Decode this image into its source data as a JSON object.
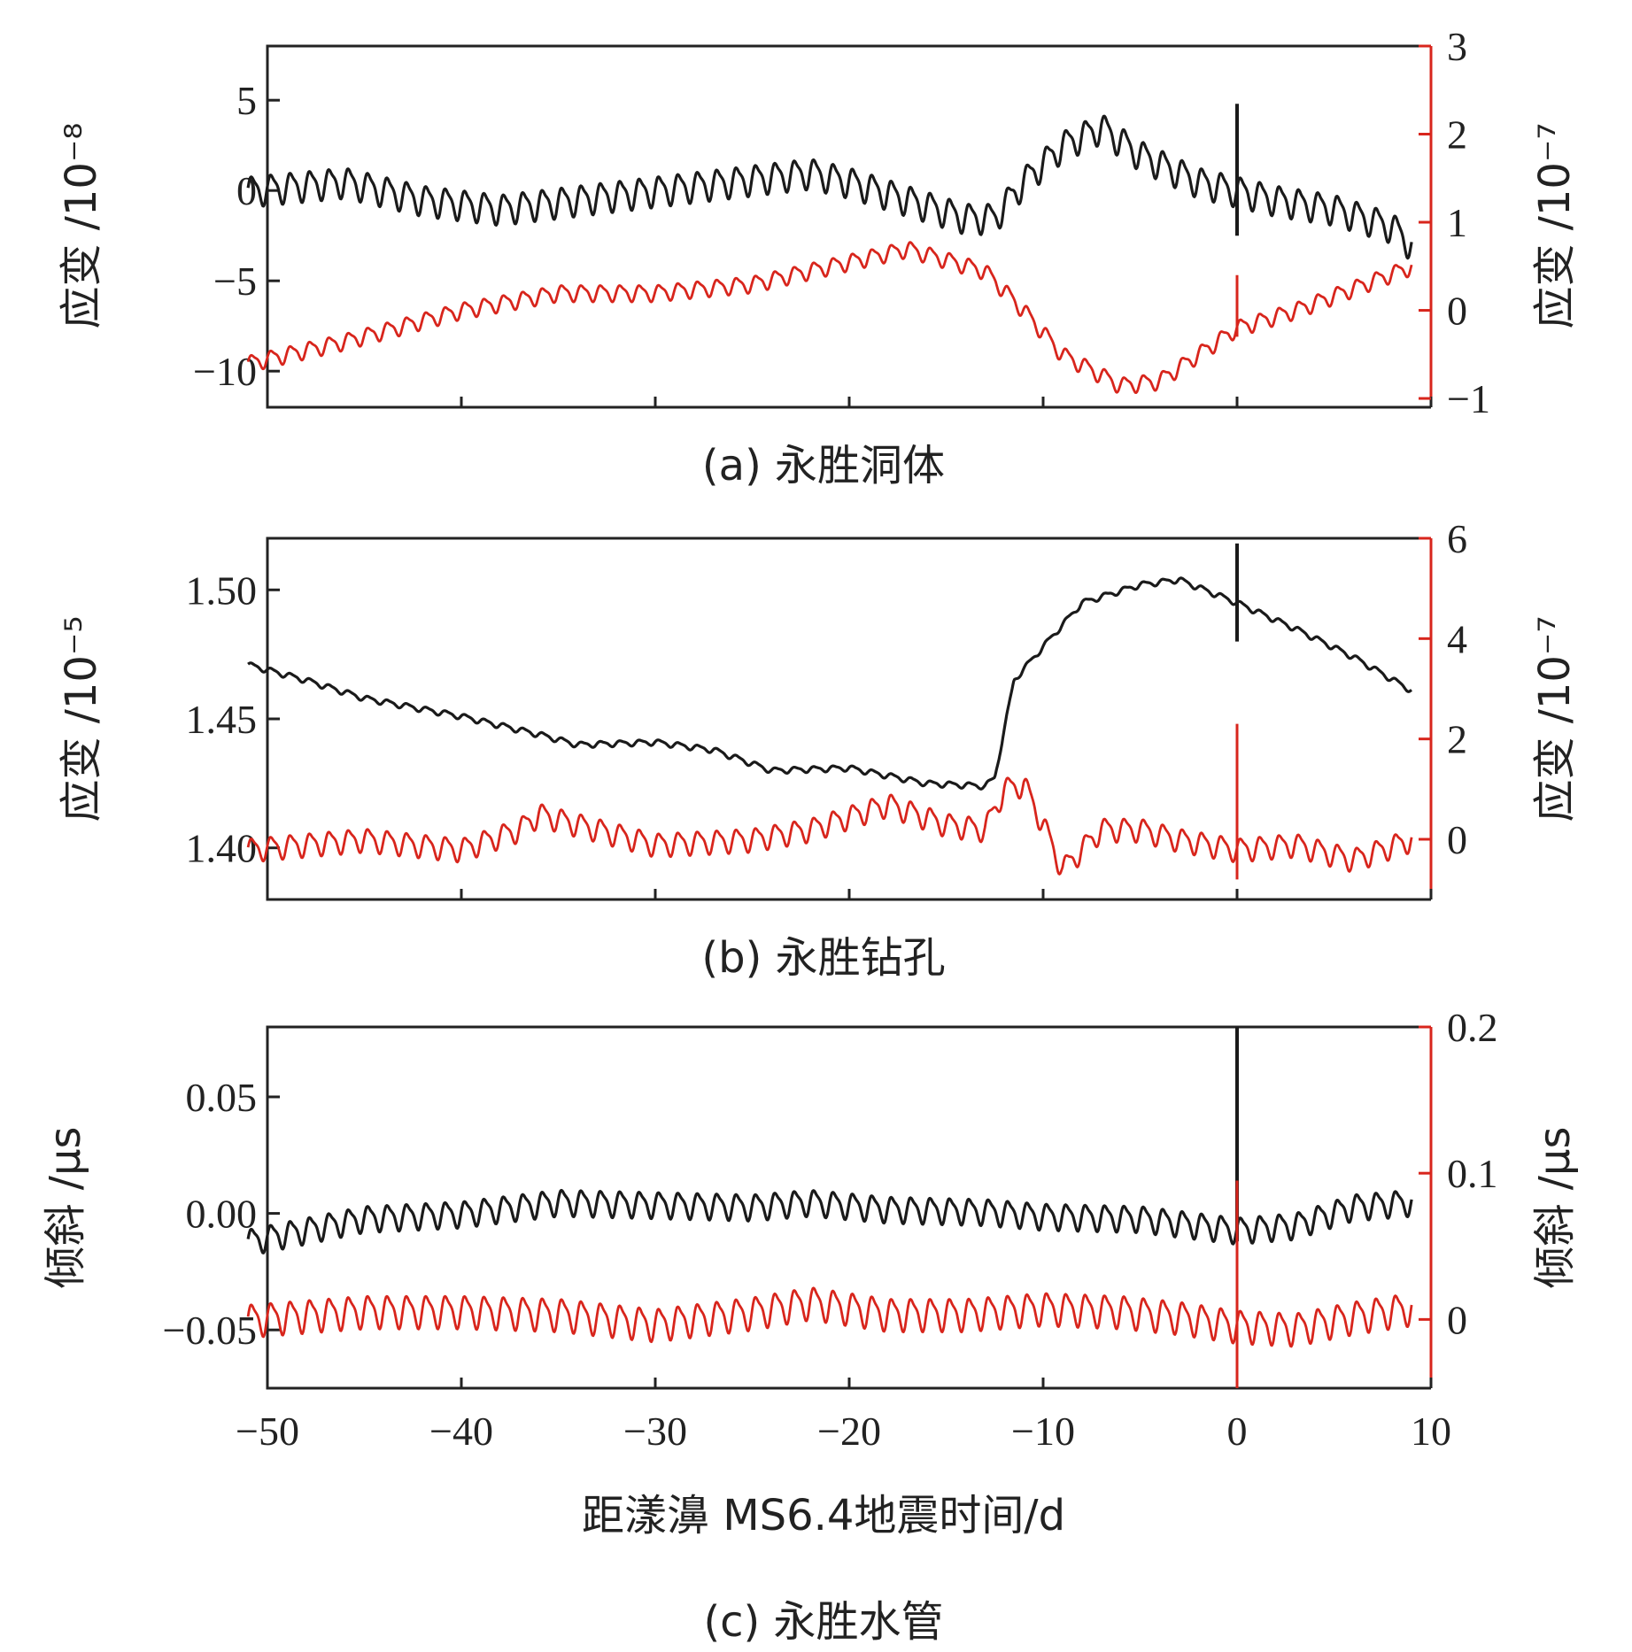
{
  "chart_data": [
    {
      "type": "line",
      "caption": "(a) 永胜洞体",
      "xlim": [
        -50,
        10
      ],
      "x_ticks": [
        -50,
        -40,
        -30,
        -20,
        -10,
        0,
        10
      ],
      "left_axis": {
        "label": "应变 /10⁻⁸",
        "ylim": [
          -12,
          8
        ],
        "ticks": [
          5,
          0,
          -5,
          -10
        ],
        "color": "#222222"
      },
      "right_axis": {
        "label": "应变 /10⁻⁷",
        "ylim": [
          -1.1,
          3
        ],
        "ticks": [
          3,
          2,
          1,
          0,
          -1
        ],
        "color": "#d8251c"
      },
      "series": [
        {
          "name": "black",
          "axis": "left",
          "color": "#1a1a1a",
          "ripple": 0.9,
          "period": 1,
          "points": [
            [
              -51,
              0
            ],
            [
              -46,
              0.5
            ],
            [
              -42,
              -0.5
            ],
            [
              -38,
              -1
            ],
            [
              -34,
              -0.5
            ],
            [
              -30,
              0
            ],
            [
              -26,
              0.5
            ],
            [
              -22,
              1
            ],
            [
              -20,
              0.5
            ],
            [
              -17,
              -0.5
            ],
            [
              -14,
              -1.5
            ],
            [
              -12.5,
              -1.5
            ],
            [
              -11,
              0.5
            ],
            [
              -9,
              2.5
            ],
            [
              -7,
              3.5
            ],
            [
              -5,
              2
            ],
            [
              -2,
              0.5
            ],
            [
              0,
              0
            ],
            [
              2,
              -0.5
            ],
            [
              5,
              -1
            ],
            [
              8,
              -2
            ],
            [
              9,
              -3
            ]
          ]
        },
        {
          "name": "red",
          "axis": "right",
          "color": "#d8251c",
          "ripple": 0.1,
          "period": 1,
          "points": [
            [
              -51,
              -0.6
            ],
            [
              -46,
              -0.35
            ],
            [
              -40,
              0
            ],
            [
              -35,
              0.2
            ],
            [
              -30,
              0.2
            ],
            [
              -25,
              0.3
            ],
            [
              -20,
              0.55
            ],
            [
              -17,
              0.7
            ],
            [
              -13,
              0.45
            ],
            [
              -11,
              0
            ],
            [
              -9,
              -0.5
            ],
            [
              -6,
              -0.85
            ],
            [
              -4,
              -0.8
            ],
            [
              -2,
              -0.5
            ],
            [
              0,
              -0.2
            ],
            [
              3,
              0
            ],
            [
              6,
              0.25
            ],
            [
              9,
              0.5
            ]
          ]
        }
      ],
      "spikes": [
        {
          "series": "black",
          "x": 0,
          "from": 4.8,
          "to": -2.5
        },
        {
          "series": "red",
          "x": 0,
          "from": 0.4,
          "to": -0.3
        }
      ]
    },
    {
      "type": "line",
      "caption": "(b) 永胜钻孔",
      "xlim": [
        -50,
        10
      ],
      "x_ticks": [
        -50,
        -40,
        -30,
        -20,
        -10,
        0,
        10
      ],
      "left_axis": {
        "label": "应变 /10⁻⁵",
        "ylim": [
          1.38,
          1.52
        ],
        "ticks": [
          1.5,
          1.45,
          1.4
        ],
        "decimals": 2,
        "color": "#222222"
      },
      "right_axis": {
        "label": "应变 /10⁻⁷",
        "ylim": [
          -1.2,
          6
        ],
        "ticks": [
          6,
          4,
          2,
          0
        ],
        "color": "#d8251c"
      },
      "series": [
        {
          "name": "black",
          "axis": "left",
          "color": "#1a1a1a",
          "ripple": 0.0012,
          "period": 1,
          "points": [
            [
              -51,
              1.471
            ],
            [
              -48,
              1.465
            ],
            [
              -45,
              1.458
            ],
            [
              -40,
              1.451
            ],
            [
              -36,
              1.444
            ],
            [
              -34,
              1.44
            ],
            [
              -30,
              1.441
            ],
            [
              -27,
              1.438
            ],
            [
              -24,
              1.43
            ],
            [
              -20,
              1.431
            ],
            [
              -16,
              1.425
            ],
            [
              -13,
              1.424
            ],
            [
              -12.5,
              1.427
            ],
            [
              -11.5,
              1.465
            ],
            [
              -10,
              1.478
            ],
            [
              -8,
              1.495
            ],
            [
              -5,
              1.502
            ],
            [
              -3,
              1.504
            ],
            [
              0,
              1.495
            ],
            [
              3,
              1.485
            ],
            [
              6,
              1.474
            ],
            [
              9,
              1.461
            ]
          ]
        },
        {
          "name": "red",
          "axis": "right",
          "color": "#d8251c",
          "ripple": 0.25,
          "period": 1,
          "points": [
            [
              -51,
              -0.2
            ],
            [
              -45,
              0
            ],
            [
              -40,
              -0.2
            ],
            [
              -37,
              0.2
            ],
            [
              -36,
              0.5
            ],
            [
              -34,
              0.3
            ],
            [
              -30,
              -0.1
            ],
            [
              -25,
              0
            ],
            [
              -22,
              0.2
            ],
            [
              -18,
              0.7
            ],
            [
              -15,
              0.3
            ],
            [
              -13,
              0.2
            ],
            [
              -12,
              1
            ],
            [
              -11,
              1.1
            ],
            [
              -10,
              0.3
            ],
            [
              -9,
              -0.6
            ],
            [
              -7,
              0.2
            ],
            [
              -5,
              0.2
            ],
            [
              -3,
              0
            ],
            [
              0,
              -0.2
            ],
            [
              3,
              -0.1
            ],
            [
              6,
              -0.4
            ],
            [
              9,
              0
            ]
          ]
        }
      ],
      "spikes": [
        {
          "series": "black",
          "x": 0,
          "from": 1.518,
          "to": 1.48
        },
        {
          "series": "red",
          "x": 0,
          "from": 2.3,
          "to": -0.8
        }
      ]
    },
    {
      "type": "line",
      "caption": "(c) 永胜水管",
      "xlim": [
        -50,
        10
      ],
      "x_ticks": [
        -50,
        -40,
        -30,
        -20,
        -10,
        0,
        10
      ],
      "x_label": "距漾濞 MS6.4地震时间/d",
      "left_axis": {
        "label": "倾斜 /μs",
        "ylim": [
          -0.075,
          0.08
        ],
        "ticks": [
          0.05,
          0,
          -0.05
        ],
        "decimals": 2,
        "color": "#222222"
      },
      "right_axis": {
        "label": "倾斜 /μs",
        "ylim": [
          -0.047,
          0.2
        ],
        "ticks": [
          0.2,
          0.1,
          0
        ],
        "color": "#d8251c"
      },
      "series": [
        {
          "name": "black",
          "axis": "left",
          "color": "#1a1a1a",
          "ripple": 0.006,
          "period": 1,
          "points": [
            [
              -51,
              -0.012
            ],
            [
              -45,
              -0.002
            ],
            [
              -40,
              0
            ],
            [
              -35,
              0.005
            ],
            [
              -30,
              0.004
            ],
            [
              -25,
              0.003
            ],
            [
              -22,
              0.005
            ],
            [
              -18,
              0.002
            ],
            [
              -13,
              0.001
            ],
            [
              -10,
              -0.001
            ],
            [
              -5,
              -0.002
            ],
            [
              0,
              -0.007
            ],
            [
              3,
              -0.005
            ],
            [
              6,
              0.003
            ],
            [
              9,
              0.005
            ]
          ]
        },
        {
          "name": "red",
          "axis": "right",
          "color": "#d8251c",
          "ripple": 0.012,
          "period": 1,
          "points": [
            [
              -51,
              0
            ],
            [
              -45,
              0.006
            ],
            [
              -40,
              0.006
            ],
            [
              -35,
              0.004
            ],
            [
              -30,
              -0.003
            ],
            [
              -25,
              0.005
            ],
            [
              -22,
              0.012
            ],
            [
              -18,
              0.004
            ],
            [
              -14,
              0.004
            ],
            [
              -10,
              0.008
            ],
            [
              -6,
              0.006
            ],
            [
              -3,
              0.002
            ],
            [
              0,
              -0.004
            ],
            [
              3,
              -0.006
            ],
            [
              6,
              0.002
            ],
            [
              9,
              0.008
            ]
          ]
        }
      ],
      "spikes": [
        {
          "series": "black",
          "x": 0,
          "from": 0.08,
          "to": -0.012
        },
        {
          "series": "red",
          "x": 0,
          "from": 0.095,
          "to": -0.047
        }
      ]
    }
  ]
}
